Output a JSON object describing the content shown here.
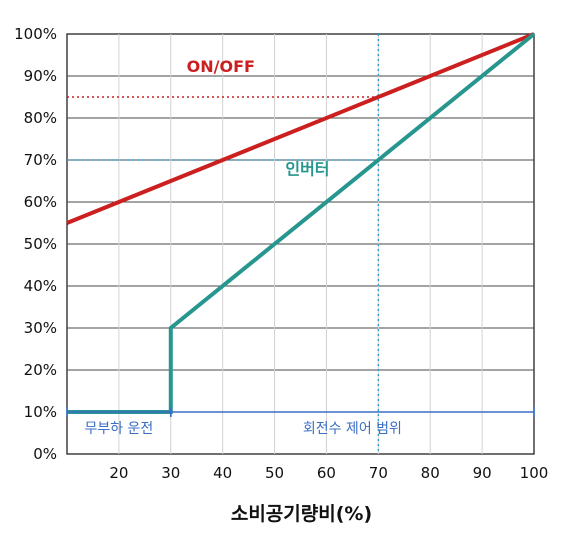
{
  "chart_data": {
    "type": "line",
    "xlabel": "소비공기량비(%)",
    "ylabel": "",
    "xlim": [
      10,
      100
    ],
    "ylim": [
      0,
      100
    ],
    "x_ticks": [
      20,
      30,
      40,
      50,
      60,
      70,
      80,
      90,
      100
    ],
    "x_tick_labels": [
      "20",
      "30",
      "40",
      "50",
      "60",
      "70",
      "80",
      "90",
      "100"
    ],
    "y_ticks": [
      0,
      10,
      20,
      30,
      40,
      50,
      60,
      70,
      80,
      90,
      100
    ],
    "y_tick_labels": [
      "0%",
      "10%",
      "20%",
      "30%",
      "40%",
      "50%",
      "60%",
      "70%",
      "80%",
      "90%",
      "100%"
    ],
    "grid": true,
    "series": [
      {
        "name": "ON/OFF",
        "color": "#cc1f1f",
        "points": [
          [
            10,
            55
          ],
          [
            100,
            100
          ]
        ]
      },
      {
        "name": "인버터",
        "color": "#26968e",
        "points": [
          [
            10,
            10
          ],
          [
            30,
            10
          ],
          [
            30,
            30
          ],
          [
            100,
            100
          ]
        ]
      }
    ],
    "reference_lines": {
      "color_vertical": "#2f9fd0",
      "vertical_x": 70,
      "onoff_level": 85,
      "inverter_level": 70
    },
    "ranges": [
      {
        "label": "무부하 운전",
        "from": 10,
        "to": 30,
        "color": "#3a6fc4"
      },
      {
        "label": "회전수 제어 범위",
        "from": 30,
        "to": 100,
        "color": "#3a6fc4"
      }
    ]
  }
}
